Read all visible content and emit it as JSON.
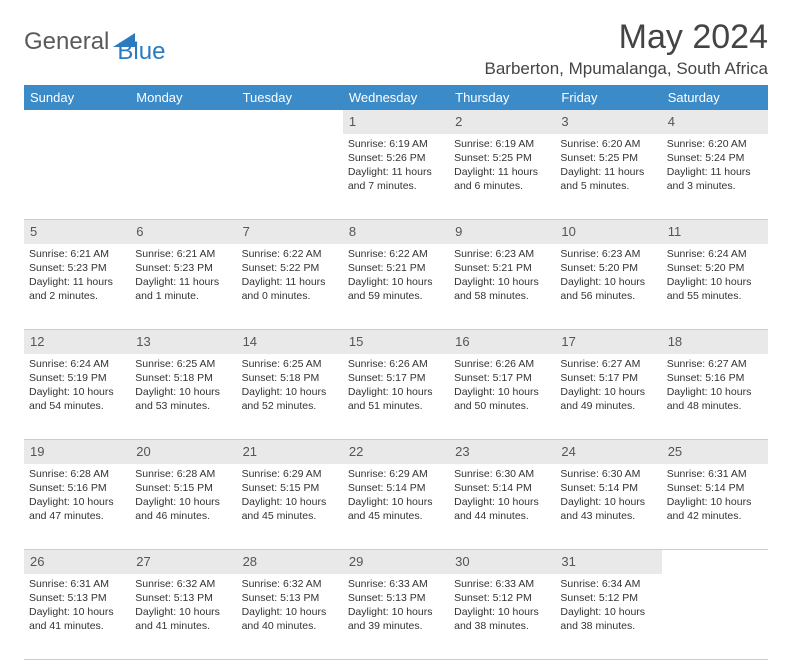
{
  "logo": {
    "text1": "General",
    "text2": "Blue"
  },
  "title": "May 2024",
  "location": "Barberton, Mpumalanga, South Africa",
  "colors": {
    "header_bg": "#3b8bc8",
    "header_text": "#ffffff",
    "daynum_bg": "#e9e9e9",
    "text": "#333333",
    "logo_gray": "#5a5a5a",
    "logo_blue": "#2b7bbf"
  },
  "day_headers": [
    "Sunday",
    "Monday",
    "Tuesday",
    "Wednesday",
    "Thursday",
    "Friday",
    "Saturday"
  ],
  "weeks": [
    {
      "nums": [
        "",
        "",
        "",
        "1",
        "2",
        "3",
        "4"
      ],
      "cells": [
        {
          "empty": true
        },
        {
          "empty": true
        },
        {
          "empty": true
        },
        {
          "sunrise": "6:19 AM",
          "sunset": "5:26 PM",
          "daylight": "11 hours and 7 minutes."
        },
        {
          "sunrise": "6:19 AM",
          "sunset": "5:25 PM",
          "daylight": "11 hours and 6 minutes."
        },
        {
          "sunrise": "6:20 AM",
          "sunset": "5:25 PM",
          "daylight": "11 hours and 5 minutes."
        },
        {
          "sunrise": "6:20 AM",
          "sunset": "5:24 PM",
          "daylight": "11 hours and 3 minutes."
        }
      ]
    },
    {
      "nums": [
        "5",
        "6",
        "7",
        "8",
        "9",
        "10",
        "11"
      ],
      "cells": [
        {
          "sunrise": "6:21 AM",
          "sunset": "5:23 PM",
          "daylight": "11 hours and 2 minutes."
        },
        {
          "sunrise": "6:21 AM",
          "sunset": "5:23 PM",
          "daylight": "11 hours and 1 minute."
        },
        {
          "sunrise": "6:22 AM",
          "sunset": "5:22 PM",
          "daylight": "11 hours and 0 minutes."
        },
        {
          "sunrise": "6:22 AM",
          "sunset": "5:21 PM",
          "daylight": "10 hours and 59 minutes."
        },
        {
          "sunrise": "6:23 AM",
          "sunset": "5:21 PM",
          "daylight": "10 hours and 58 minutes."
        },
        {
          "sunrise": "6:23 AM",
          "sunset": "5:20 PM",
          "daylight": "10 hours and 56 minutes."
        },
        {
          "sunrise": "6:24 AM",
          "sunset": "5:20 PM",
          "daylight": "10 hours and 55 minutes."
        }
      ]
    },
    {
      "nums": [
        "12",
        "13",
        "14",
        "15",
        "16",
        "17",
        "18"
      ],
      "cells": [
        {
          "sunrise": "6:24 AM",
          "sunset": "5:19 PM",
          "daylight": "10 hours and 54 minutes."
        },
        {
          "sunrise": "6:25 AM",
          "sunset": "5:18 PM",
          "daylight": "10 hours and 53 minutes."
        },
        {
          "sunrise": "6:25 AM",
          "sunset": "5:18 PM",
          "daylight": "10 hours and 52 minutes."
        },
        {
          "sunrise": "6:26 AM",
          "sunset": "5:17 PM",
          "daylight": "10 hours and 51 minutes."
        },
        {
          "sunrise": "6:26 AM",
          "sunset": "5:17 PM",
          "daylight": "10 hours and 50 minutes."
        },
        {
          "sunrise": "6:27 AM",
          "sunset": "5:17 PM",
          "daylight": "10 hours and 49 minutes."
        },
        {
          "sunrise": "6:27 AM",
          "sunset": "5:16 PM",
          "daylight": "10 hours and 48 minutes."
        }
      ]
    },
    {
      "nums": [
        "19",
        "20",
        "21",
        "22",
        "23",
        "24",
        "25"
      ],
      "cells": [
        {
          "sunrise": "6:28 AM",
          "sunset": "5:16 PM",
          "daylight": "10 hours and 47 minutes."
        },
        {
          "sunrise": "6:28 AM",
          "sunset": "5:15 PM",
          "daylight": "10 hours and 46 minutes."
        },
        {
          "sunrise": "6:29 AM",
          "sunset": "5:15 PM",
          "daylight": "10 hours and 45 minutes."
        },
        {
          "sunrise": "6:29 AM",
          "sunset": "5:14 PM",
          "daylight": "10 hours and 45 minutes."
        },
        {
          "sunrise": "6:30 AM",
          "sunset": "5:14 PM",
          "daylight": "10 hours and 44 minutes."
        },
        {
          "sunrise": "6:30 AM",
          "sunset": "5:14 PM",
          "daylight": "10 hours and 43 minutes."
        },
        {
          "sunrise": "6:31 AM",
          "sunset": "5:14 PM",
          "daylight": "10 hours and 42 minutes."
        }
      ]
    },
    {
      "nums": [
        "26",
        "27",
        "28",
        "29",
        "30",
        "31",
        ""
      ],
      "cells": [
        {
          "sunrise": "6:31 AM",
          "sunset": "5:13 PM",
          "daylight": "10 hours and 41 minutes."
        },
        {
          "sunrise": "6:32 AM",
          "sunset": "5:13 PM",
          "daylight": "10 hours and 41 minutes."
        },
        {
          "sunrise": "6:32 AM",
          "sunset": "5:13 PM",
          "daylight": "10 hours and 40 minutes."
        },
        {
          "sunrise": "6:33 AM",
          "sunset": "5:13 PM",
          "daylight": "10 hours and 39 minutes."
        },
        {
          "sunrise": "6:33 AM",
          "sunset": "5:12 PM",
          "daylight": "10 hours and 38 minutes."
        },
        {
          "sunrise": "6:34 AM",
          "sunset": "5:12 PM",
          "daylight": "10 hours and 38 minutes."
        },
        {
          "empty": true
        }
      ]
    }
  ]
}
